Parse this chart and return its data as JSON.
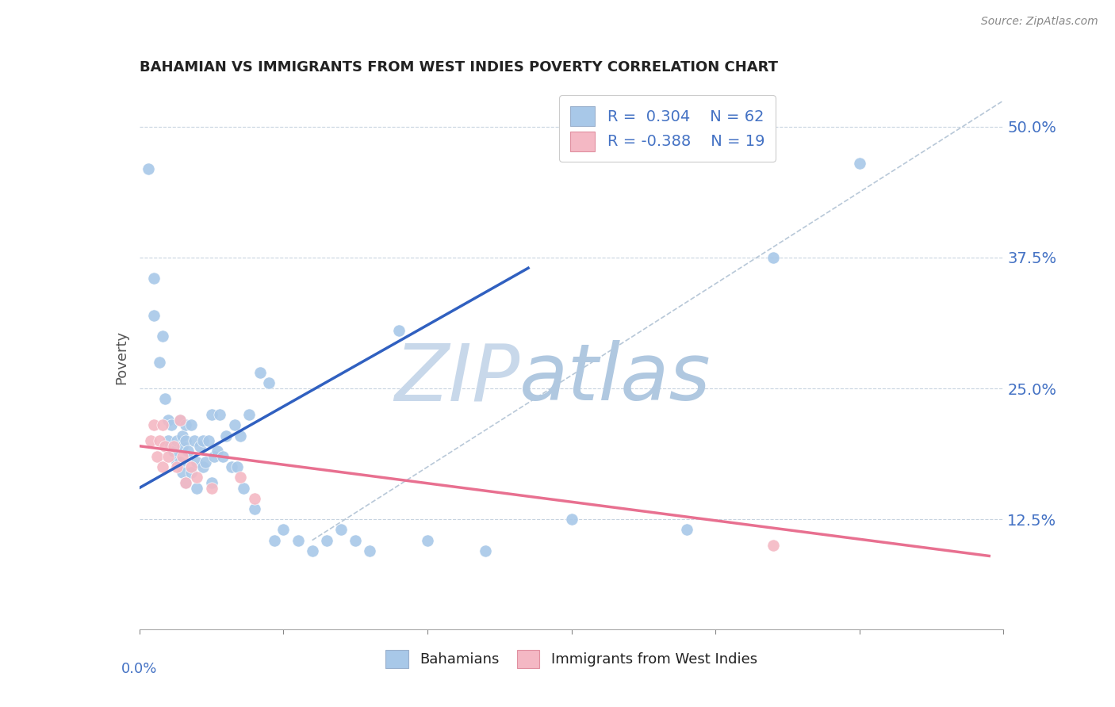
{
  "title": "BAHAMIAN VS IMMIGRANTS FROM WEST INDIES POVERTY CORRELATION CHART",
  "source": "Source: ZipAtlas.com",
  "ylabel": "Poverty",
  "ytick_labels": [
    "12.5%",
    "25.0%",
    "37.5%",
    "50.0%"
  ],
  "ytick_values": [
    0.125,
    0.25,
    0.375,
    0.5
  ],
  "xmin": 0.0,
  "xmax": 0.3,
  "ymin": 0.02,
  "ymax": 0.54,
  "blue_color": "#a8c8e8",
  "pink_color": "#f4b8c4",
  "blue_line_color": "#3060c0",
  "pink_line_color": "#e87090",
  "diagonal_color": "#b8c8d8",
  "r_n_color": "#4472c4",
  "watermark_zip_color": "#c8d8e8",
  "watermark_atlas_color": "#b0c4d8",
  "bahamian_x": [
    0.003,
    0.005,
    0.007,
    0.008,
    0.009,
    0.01,
    0.01,
    0.011,
    0.012,
    0.013,
    0.013,
    0.014,
    0.014,
    0.015,
    0.015,
    0.015,
    0.016,
    0.016,
    0.016,
    0.017,
    0.018,
    0.018,
    0.019,
    0.02,
    0.02,
    0.021,
    0.022,
    0.022,
    0.023,
    0.024,
    0.025,
    0.025,
    0.026,
    0.027,
    0.028,
    0.029,
    0.03,
    0.032,
    0.033,
    0.034,
    0.035,
    0.036,
    0.038,
    0.04,
    0.042,
    0.045,
    0.047,
    0.05,
    0.055,
    0.06,
    0.065,
    0.07,
    0.075,
    0.08,
    0.09,
    0.1,
    0.12,
    0.15,
    0.19,
    0.22,
    0.25,
    0.005
  ],
  "bahamian_y": [
    0.46,
    0.32,
    0.275,
    0.3,
    0.24,
    0.22,
    0.2,
    0.215,
    0.19,
    0.2,
    0.18,
    0.22,
    0.18,
    0.195,
    0.17,
    0.205,
    0.2,
    0.16,
    0.215,
    0.19,
    0.215,
    0.17,
    0.2,
    0.18,
    0.155,
    0.195,
    0.2,
    0.175,
    0.18,
    0.2,
    0.225,
    0.16,
    0.185,
    0.19,
    0.225,
    0.185,
    0.205,
    0.175,
    0.215,
    0.175,
    0.205,
    0.155,
    0.225,
    0.135,
    0.265,
    0.255,
    0.105,
    0.115,
    0.105,
    0.095,
    0.105,
    0.115,
    0.105,
    0.095,
    0.305,
    0.105,
    0.095,
    0.125,
    0.115,
    0.375,
    0.465,
    0.355
  ],
  "westindies_x": [
    0.004,
    0.005,
    0.006,
    0.007,
    0.008,
    0.008,
    0.009,
    0.01,
    0.012,
    0.013,
    0.014,
    0.015,
    0.016,
    0.018,
    0.02,
    0.025,
    0.035,
    0.04,
    0.22
  ],
  "westindies_y": [
    0.2,
    0.215,
    0.185,
    0.2,
    0.215,
    0.175,
    0.195,
    0.185,
    0.195,
    0.175,
    0.22,
    0.185,
    0.16,
    0.175,
    0.165,
    0.155,
    0.165,
    0.145,
    0.1
  ],
  "blue_line_x": [
    0.0,
    0.135
  ],
  "blue_line_y": [
    0.155,
    0.365
  ],
  "pink_line_x": [
    0.0,
    0.295
  ],
  "pink_line_y": [
    0.195,
    0.09
  ],
  "diag_line_x": [
    0.06,
    0.3
  ],
  "diag_line_y": [
    0.105,
    0.525
  ],
  "xtick_positions": [
    0.0,
    0.05,
    0.1,
    0.15,
    0.2,
    0.25,
    0.3
  ]
}
